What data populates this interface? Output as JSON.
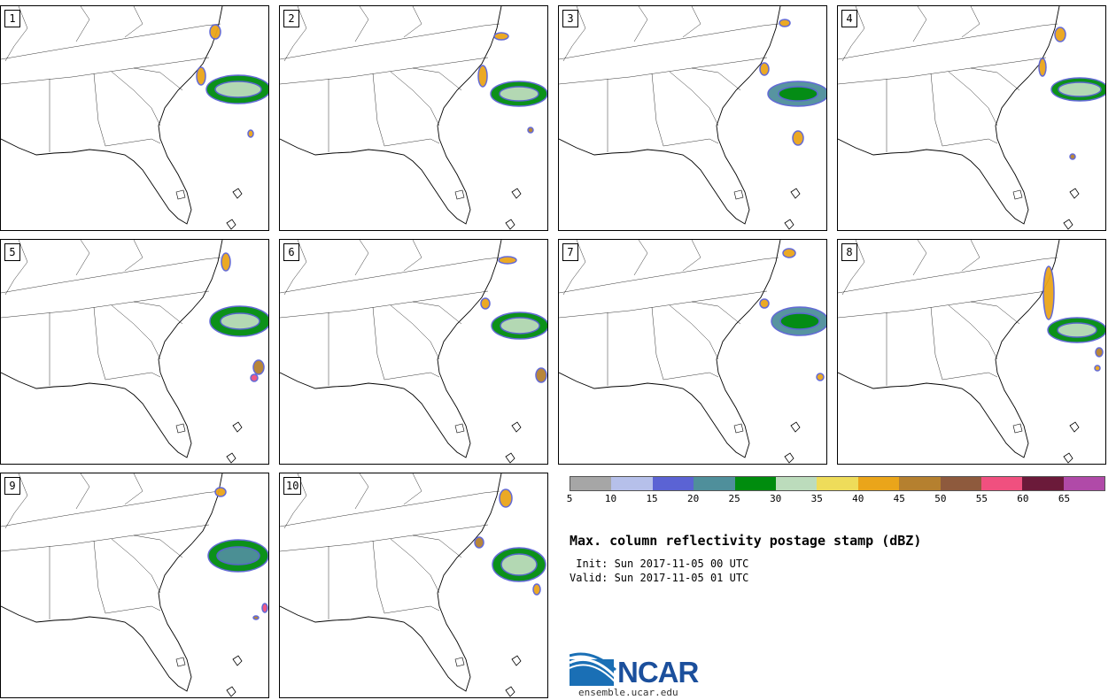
{
  "panels": [
    {
      "label": "1"
    },
    {
      "label": "2"
    },
    {
      "label": "3"
    },
    {
      "label": "4"
    },
    {
      "label": "5"
    },
    {
      "label": "6"
    },
    {
      "label": "7"
    },
    {
      "label": "8"
    },
    {
      "label": "9"
    },
    {
      "label": "10"
    }
  ],
  "colorbar": {
    "colors": [
      "#a6a6a6",
      "#b6c0ea",
      "#5b63d4",
      "#4f8f9b",
      "#008c0e",
      "#bcdcbc",
      "#eedc5a",
      "#eaa51a",
      "#b5802f",
      "#8e5a3d",
      "#f0507f",
      "#6b1a3a",
      "#b04aa8"
    ],
    "tick_labels": [
      "5",
      "10",
      "15",
      "20",
      "25",
      "30",
      "35",
      "40",
      "45",
      "50",
      "55",
      "60",
      "65"
    ]
  },
  "title": "Max. column reflectivity postage stamp (dBZ)",
  "init": " Init: Sun 2017-11-05 00 UTC",
  "valid": "Valid: Sun 2017-11-05 01 UTC",
  "logo": {
    "name": "NCAR",
    "url": "ensemble.ucar.edu"
  }
}
